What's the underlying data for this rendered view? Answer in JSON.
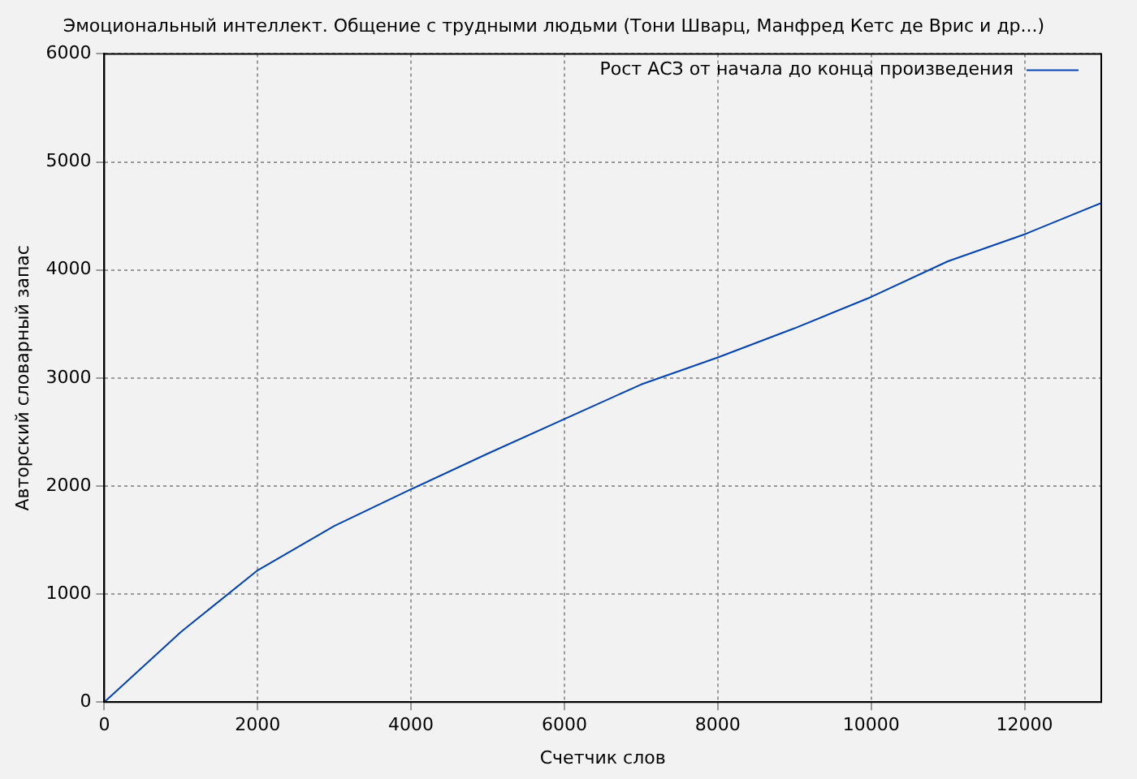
{
  "chart_data": {
    "type": "line",
    "title": "Эмоциональный интеллект. Общение с трудными людьми (Тони Шварц, Манфред Кетс де Врис и др...)",
    "xlabel": "Счетчик слов",
    "ylabel": "Авторский словарный запас",
    "x": [
      0,
      1000,
      2000,
      3000,
      4000,
      5000,
      6000,
      7000,
      8000,
      9000,
      10000,
      11000,
      12000,
      13000
    ],
    "series": [
      {
        "name": "Рост АСЗ от начала до конца произведения",
        "color": "#0042b4",
        "values": [
          0,
          650,
          1220,
          1630,
          1970,
          2300,
          2620,
          2940,
          3190,
          3460,
          3750,
          4080,
          4330,
          4620
        ]
      }
    ],
    "xlim": [
      0,
      13000
    ],
    "xticks": [
      0,
      2000,
      4000,
      6000,
      8000,
      10000,
      12000
    ],
    "ylim": [
      0,
      6000
    ],
    "yticks": [
      0,
      1000,
      2000,
      3000,
      4000,
      5000,
      6000
    ],
    "grid": true,
    "legend": "top right",
    "marker": "none",
    "line_style": "solid"
  }
}
